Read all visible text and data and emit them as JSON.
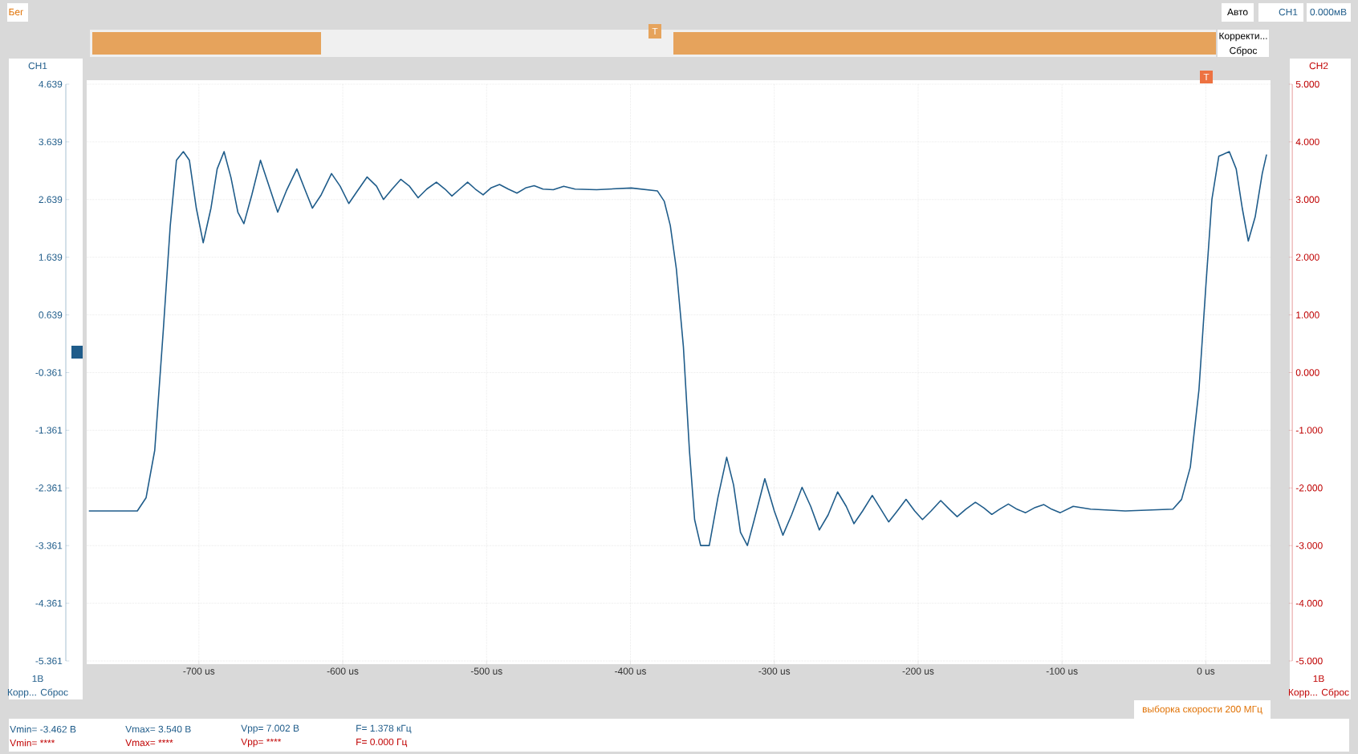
{
  "chart_data": {
    "type": "line",
    "color": "#1f5c8a",
    "marker": "none",
    "line_style": "solid",
    "grid": true,
    "x": [
      -776.5,
      -742.8,
      -736.7,
      -730.7,
      -724.7,
      -719.9,
      -715.6,
      -710.8,
      -706.6,
      -701.8,
      -697.0,
      -691.6,
      -687.3,
      -682.5,
      -677.7,
      -672.9,
      -668.7,
      -663.2,
      -657.2,
      -651.2,
      -645.2,
      -639.2,
      -631.9,
      -625.9,
      -621.1,
      -615.0,
      -607.8,
      -601.8,
      -595.8,
      -589.8,
      -583.1,
      -576.5,
      -571.7,
      -565.7,
      -559.6,
      -553.6,
      -547.6,
      -541.6,
      -534.9,
      -528.9,
      -524.1,
      -518.7,
      -513.2,
      -507.8,
      -502.4,
      -497.0,
      -491.0,
      -484.9,
      -478.9,
      -472.9,
      -466.9,
      -460.8,
      -453.6,
      -446.4,
      -438.5,
      -423.5,
      -399.4,
      -381.3,
      -376.5,
      -372.3,
      -368.1,
      -363.2,
      -359.0,
      -355.4,
      -351.2,
      -345.2,
      -339.2,
      -333.1,
      -328.3,
      -323.5,
      -318.7,
      -313.9,
      -306.6,
      -300.0,
      -294.0,
      -288.0,
      -280.7,
      -274.7,
      -268.7,
      -262.6,
      -256.0,
      -250.0,
      -244.6,
      -238.6,
      -231.9,
      -225.9,
      -220.5,
      -214.5,
      -208.4,
      -202.4,
      -197.0,
      -191.0,
      -184.3,
      -178.3,
      -172.9,
      -166.9,
      -160.2,
      -154.2,
      -148.8,
      -143.4,
      -137.3,
      -131.3,
      -125.3,
      -118.7,
      -112.6,
      -107.2,
      -101.2,
      -92.2,
      -80.1,
      -56.0,
      -22.9,
      -16.9,
      -10.8,
      -4.8,
      0,
      4.2,
      9.0,
      16.3,
      21.1,
      25.3,
      29.5,
      34.3,
      39.2,
      42.2
    ],
    "values": [
      -2.76,
      -2.76,
      -2.53,
      -1.71,
      0.39,
      2.19,
      3.32,
      3.47,
      3.32,
      2.49,
      1.89,
      2.49,
      3.17,
      3.47,
      3.02,
      2.42,
      2.22,
      2.72,
      3.32,
      2.87,
      2.42,
      2.79,
      3.17,
      2.79,
      2.49,
      2.72,
      3.09,
      2.87,
      2.57,
      2.79,
      3.03,
      2.87,
      2.64,
      2.82,
      2.99,
      2.87,
      2.67,
      2.82,
      2.94,
      2.82,
      2.7,
      2.82,
      2.94,
      2.82,
      2.72,
      2.84,
      2.9,
      2.82,
      2.75,
      2.84,
      2.88,
      2.82,
      2.81,
      2.87,
      2.82,
      2.81,
      2.84,
      2.79,
      2.61,
      2.19,
      1.44,
      0.09,
      -1.71,
      -2.91,
      -3.36,
      -3.36,
      -2.53,
      -1.83,
      -2.31,
      -3.13,
      -3.36,
      -2.91,
      -2.2,
      -2.76,
      -3.18,
      -2.83,
      -2.35,
      -2.68,
      -3.09,
      -2.83,
      -2.43,
      -2.68,
      -2.98,
      -2.76,
      -2.49,
      -2.73,
      -2.95,
      -2.76,
      -2.56,
      -2.76,
      -2.91,
      -2.76,
      -2.58,
      -2.73,
      -2.86,
      -2.73,
      -2.61,
      -2.71,
      -2.82,
      -2.73,
      -2.64,
      -2.73,
      -2.79,
      -2.7,
      -2.65,
      -2.73,
      -2.79,
      -2.68,
      -2.73,
      -2.76,
      -2.73,
      -2.56,
      -2.0,
      -0.66,
      1.14,
      2.64,
      3.39,
      3.47,
      3.17,
      2.49,
      1.92,
      2.34,
      3.09,
      3.42
    ],
    "xlim": [
      -778,
      45
    ],
    "ylim": [
      -5.361,
      4.639
    ],
    "y2lim": [
      -5.0,
      5.0
    ],
    "xticks": [
      {
        "value": -700,
        "label": "-700 us"
      },
      {
        "value": -600,
        "label": "-600 us"
      },
      {
        "value": -500,
        "label": "-500 us"
      },
      {
        "value": -400,
        "label": "-400 us"
      },
      {
        "value": -300,
        "label": "-300 us"
      },
      {
        "value": -200,
        "label": "-200 us"
      },
      {
        "value": -100,
        "label": "-100 us"
      },
      {
        "value": 0,
        "label": "0 us"
      }
    ],
    "yticks": [
      4.639,
      3.639,
      2.639,
      1.639,
      0.639,
      -0.361,
      -1.361,
      -2.361,
      -3.361,
      -4.361,
      -5.361
    ],
    "y2ticks": [
      {
        "value": 5,
        "label": "5.000"
      },
      {
        "value": 4,
        "label": "4.000"
      },
      {
        "value": 3,
        "label": "3.000"
      },
      {
        "value": 2,
        "label": "2.000"
      },
      {
        "value": 1,
        "label": "1.000"
      },
      {
        "value": 0,
        "label": "0.000"
      },
      {
        "value": -1,
        "label": "-1.000"
      },
      {
        "value": -2,
        "label": "-2.000"
      },
      {
        "value": -3,
        "label": "-3.000"
      },
      {
        "value": -4,
        "label": "-4.000"
      },
      {
        "value": -5,
        "label": "-5.000"
      }
    ],
    "annotations": [
      "Бег",
      "Авто",
      "CH1",
      "0.000мВ",
      "Корректи...",
      "Сброс",
      "CH1",
      "CH2",
      "1В",
      "Корр... Сброс",
      "1В",
      "Корр... Сброс",
      "выборка скорости 200 МГц",
      "Vmin= -3.462 В",
      "Vmax= 3.540 В",
      "Vpp= 7.002 В",
      "F= 1.378 кГц",
      "Vmin= ****",
      "Vmax= ****",
      "Vpp= ****",
      "F= 0.000 Гц",
      "T",
      "T"
    ]
  }
}
